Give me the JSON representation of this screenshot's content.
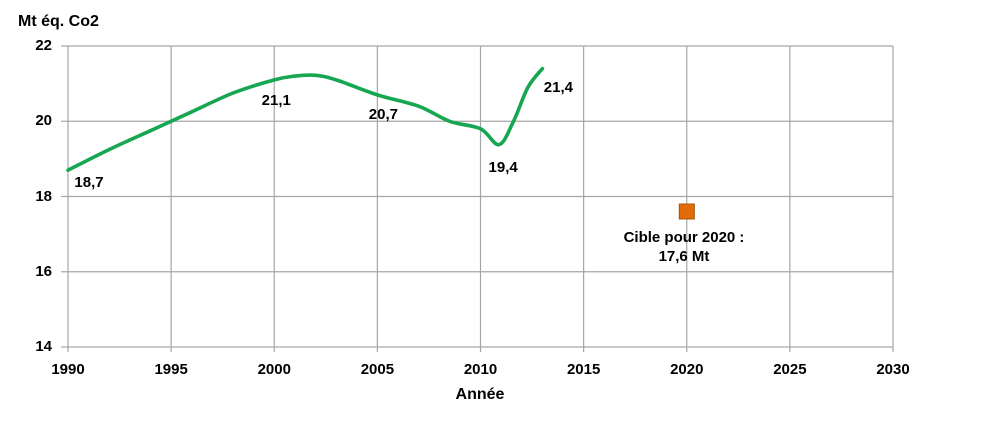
{
  "chart_data": {
    "type": "line",
    "title": "Mt éq. Co2",
    "xlabel": "Année",
    "ylabel": "Mt éq. Co2",
    "xlim": [
      1990,
      2030
    ],
    "ylim": [
      14,
      22
    ],
    "x_ticks": [
      "1990",
      "1995",
      "2000",
      "2005",
      "2010",
      "2015",
      "2020",
      "2025",
      "2030"
    ],
    "y_ticks": [
      "14",
      "16",
      "18",
      "20",
      "22"
    ],
    "grid": true,
    "legend_position": "none",
    "series": [
      {
        "points": [
          [
            1990,
            18.7
          ],
          [
            1992,
            19.25
          ],
          [
            1994,
            19.75
          ],
          [
            1995,
            20.0
          ],
          [
            1996,
            20.25
          ],
          [
            1998,
            20.75
          ],
          [
            2000,
            21.1
          ],
          [
            2001,
            21.2
          ],
          [
            2002,
            21.22
          ],
          [
            2003,
            21.1
          ],
          [
            2005,
            20.7
          ],
          [
            2007,
            20.4
          ],
          [
            2008.5,
            20.0
          ],
          [
            2010,
            19.8
          ],
          [
            2010.9,
            19.38
          ],
          [
            2011.6,
            20.0
          ],
          [
            2012.3,
            20.9
          ],
          [
            2013,
            21.4
          ]
        ]
      }
    ],
    "point_labels": [
      {
        "year": 1990,
        "value": 18.7,
        "text": "18,7"
      },
      {
        "year": 2000,
        "value": 21.1,
        "text": "21,1"
      },
      {
        "year": 2005,
        "value": 20.7,
        "text": "20,7"
      },
      {
        "year": 2011,
        "value": 19.4,
        "text": "19,4"
      },
      {
        "year": 2013,
        "value": 21.4,
        "text": "21,4"
      }
    ],
    "target": {
      "year": 2020,
      "value": 17.6,
      "marker": "square",
      "label_line1": "Cible pour 2020 :",
      "label_line2": "17,6 Mt"
    },
    "colors": {
      "line": "#17a651",
      "target_marker": "#e36c0a",
      "target_marker_border": "#a85408",
      "grid": "#a6a6a6",
      "text": "#000000"
    }
  }
}
